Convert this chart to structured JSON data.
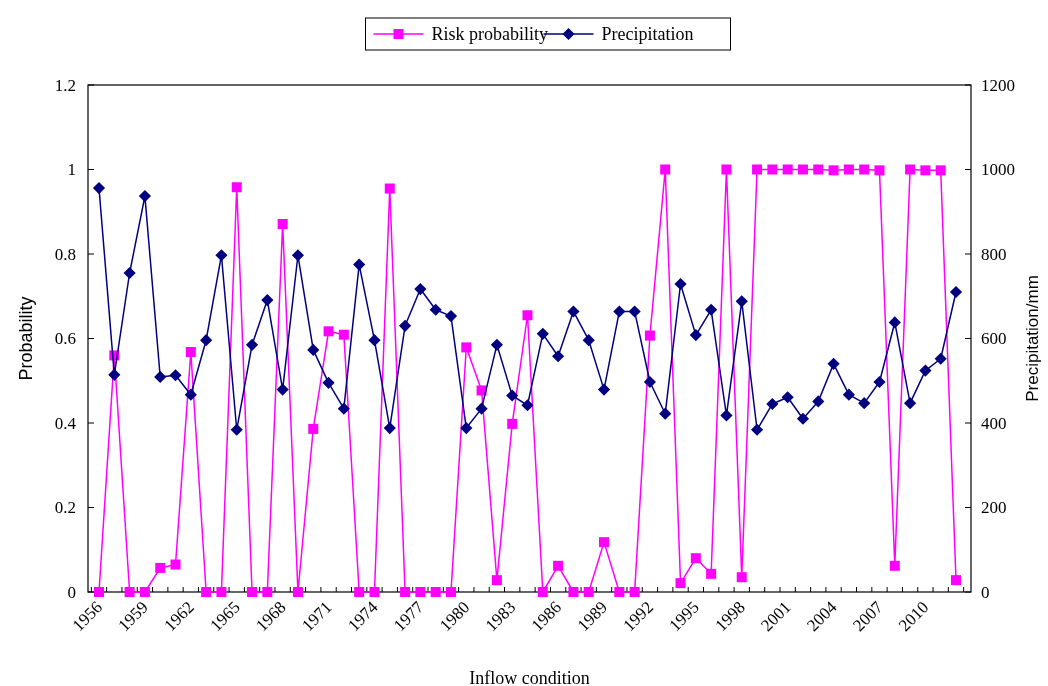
{
  "chart_data": {
    "type": "line",
    "xlabel": "Inflow condition",
    "ylabel": "Probability",
    "y2label": "Precipitation/mm",
    "categories": [
      "1956",
      null,
      null,
      "1959",
      null,
      null,
      "1962",
      null,
      null,
      "1965",
      null,
      null,
      "1968",
      null,
      null,
      "1971",
      null,
      null,
      "1974",
      null,
      null,
      "1977",
      null,
      null,
      "1980",
      null,
      null,
      "1983",
      null,
      null,
      "1986",
      null,
      null,
      "1989",
      null,
      null,
      "1992",
      null,
      null,
      "1995",
      null,
      null,
      "1998",
      null,
      null,
      "2001",
      null,
      null,
      "2004",
      null,
      null,
      "2007",
      null,
      null,
      "2010",
      null,
      null
    ],
    "series": [
      {
        "name": "Risk probability",
        "color": "#ff00ff",
        "marker": "square",
        "values": [
          0,
          0.56,
          0,
          0,
          0.057,
          0.065,
          0.568,
          0,
          0,
          0.958,
          0,
          0,
          0.871,
          0,
          0.386,
          0.617,
          0.609,
          0,
          0,
          0.955,
          0,
          0,
          0,
          0,
          0.579,
          0.477,
          0.028,
          0.398,
          0.655,
          0,
          0.062,
          0,
          0,
          0.118,
          0,
          0,
          0.607,
          1,
          0.021,
          0.08,
          0.043,
          1,
          0.035,
          1,
          1,
          1,
          1,
          1,
          0.998,
          1,
          1,
          0.998,
          0.062,
          1,
          0.998,
          0.998,
          0.028
        ]
      },
      {
        "name": "Precipitation",
        "color": "#000080",
        "marker": "diamond",
        "axis": "y2",
        "values": [
          956,
          514,
          755,
          937,
          509,
          513,
          467,
          596,
          797,
          384,
          585,
          691,
          479,
          797,
          573,
          495,
          434,
          775,
          596,
          388,
          630,
          717,
          668,
          653,
          388,
          434,
          585,
          465,
          442,
          611,
          558,
          664,
          596,
          479,
          664,
          664,
          497,
          422,
          729,
          608,
          668,
          418,
          688,
          384,
          445,
          461,
          410,
          451,
          540,
          467,
          447,
          497,
          638,
          447,
          524,
          552,
          710
        ]
      }
    ],
    "ylim": [
      0,
      1.2
    ],
    "yticks": [
      0,
      0.2,
      0.4,
      0.6,
      0.8,
      1,
      1.2
    ],
    "y2lim": [
      0,
      1200
    ],
    "y2ticks": [
      0,
      200,
      400,
      600,
      800,
      1000,
      1200
    ],
    "legend": "top",
    "grid": false
  }
}
